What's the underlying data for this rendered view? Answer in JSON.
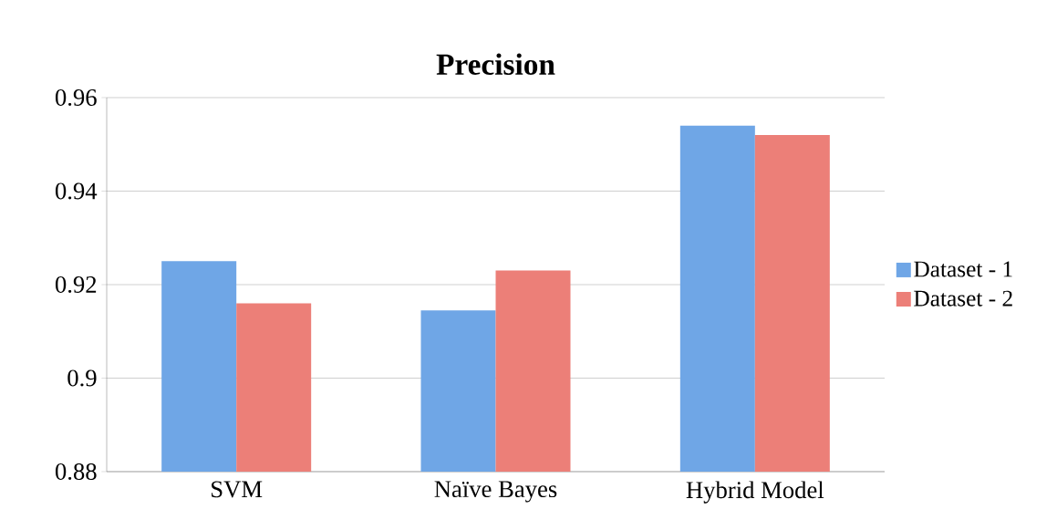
{
  "chart_data": {
    "type": "bar",
    "title": "Precision",
    "categories": [
      "SVM",
      "Naïve Bayes",
      "Hybrid Model"
    ],
    "series": [
      {
        "name": "Dataset - 1",
        "color": "#6fa6e6",
        "values": [
          0.925,
          0.9145,
          0.954
        ]
      },
      {
        "name": "Dataset - 2",
        "color": "#ec7f78",
        "values": [
          0.916,
          0.923,
          0.952
        ]
      }
    ],
    "ylim": [
      0.88,
      0.96
    ],
    "yticks": [
      0.88,
      0.9,
      0.92,
      0.94,
      0.96
    ],
    "grid": "y",
    "legend": "right"
  }
}
